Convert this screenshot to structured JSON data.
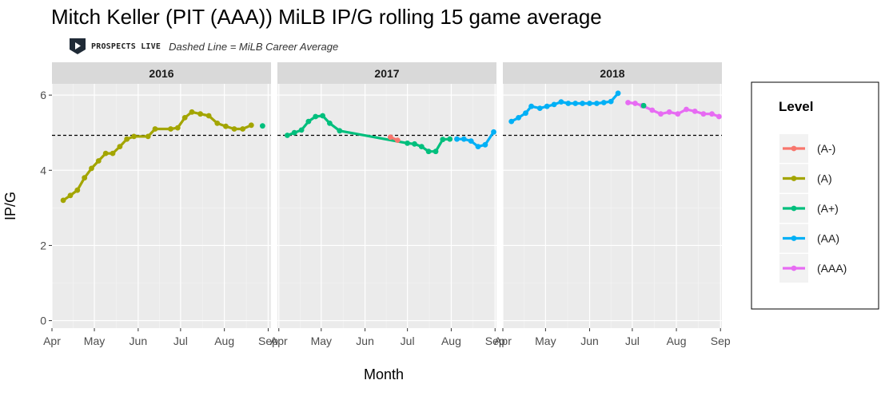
{
  "chart_data": {
    "type": "line",
    "title": "Mitch Keller (PIT (AAA)) MiLB IP/G rolling 15 game average",
    "subtitle": "Dashed Line = MiLB Career Average",
    "brand": "PROSPECTS LIVE",
    "xlabel": "Month",
    "ylabel": "IP/G",
    "ylim": [
      -0.2,
      6.3
    ],
    "yticks": [
      0,
      2,
      4,
      6
    ],
    "career_average": 4.93,
    "grid": true,
    "legend": {
      "title": "Level",
      "position": "right",
      "entries": [
        {
          "label": "(A-)",
          "color": "#F8766D"
        },
        {
          "label": "(A)",
          "color": "#A3A500"
        },
        {
          "label": "(A+)",
          "color": "#00BF7D"
        },
        {
          "label": "(AA)",
          "color": "#00B0F6"
        },
        {
          "label": "(AAA)",
          "color": "#E76BF3"
        }
      ]
    },
    "panels": [
      {
        "facet": "2016",
        "xlim": [
          "2016-04-01",
          "2016-09-03"
        ],
        "xticks": [
          {
            "label": "Apr",
            "date": "2016-04-01"
          },
          {
            "label": "May",
            "date": "2016-05-01"
          },
          {
            "label": "Jun",
            "date": "2016-06-01"
          },
          {
            "label": "Jul",
            "date": "2016-07-01"
          },
          {
            "label": "Aug",
            "date": "2016-08-01"
          },
          {
            "label": "Sep",
            "date": "2016-09-01"
          }
        ],
        "series": [
          {
            "level": "(A)",
            "points": [
              [
                "2016-04-09",
                3.2
              ],
              [
                "2016-04-14",
                3.33
              ],
              [
                "2016-04-19",
                3.47
              ],
              [
                "2016-04-24",
                3.8
              ],
              [
                "2016-04-29",
                4.05
              ],
              [
                "2016-05-04",
                4.25
              ],
              [
                "2016-05-09",
                4.45
              ],
              [
                "2016-05-14",
                4.45
              ],
              [
                "2016-05-19",
                4.63
              ],
              [
                "2016-05-24",
                4.83
              ],
              [
                "2016-05-29",
                4.9
              ],
              [
                "2016-06-08",
                4.9
              ],
              [
                "2016-06-13",
                5.1
              ],
              [
                "2016-06-24",
                5.1
              ],
              [
                "2016-06-29",
                5.13
              ],
              [
                "2016-07-04",
                5.4
              ],
              [
                "2016-07-09",
                5.55
              ],
              [
                "2016-07-15",
                5.5
              ],
              [
                "2016-07-21",
                5.45
              ],
              [
                "2016-07-27",
                5.25
              ],
              [
                "2016-08-02",
                5.17
              ],
              [
                "2016-08-08",
                5.1
              ],
              [
                "2016-08-14",
                5.1
              ],
              [
                "2016-08-20",
                5.2
              ]
            ]
          },
          {
            "level": "(A+)",
            "points": [
              [
                "2016-08-28",
                5.18
              ]
            ]
          }
        ]
      },
      {
        "facet": "2017",
        "xlim": [
          "2017-03-31",
          "2017-09-02"
        ],
        "xticks": [
          {
            "label": "Apr",
            "date": "2017-04-01"
          },
          {
            "label": "May",
            "date": "2017-05-01"
          },
          {
            "label": "Jun",
            "date": "2017-06-01"
          },
          {
            "label": "Jul",
            "date": "2017-07-01"
          },
          {
            "label": "Aug",
            "date": "2017-08-01"
          },
          {
            "label": "Sep",
            "date": "2017-09-01"
          }
        ],
        "series": [
          {
            "level": "(A+)",
            "points": [
              [
                "2017-04-07",
                4.93
              ],
              [
                "2017-04-12",
                5.0
              ],
              [
                "2017-04-17",
                5.07
              ],
              [
                "2017-04-22",
                5.3
              ],
              [
                "2017-04-27",
                5.43
              ],
              [
                "2017-05-02",
                5.45
              ],
              [
                "2017-05-07",
                5.25
              ],
              [
                "2017-05-14",
                5.05
              ],
              [
                "2017-07-01",
                4.72
              ],
              [
                "2017-07-06",
                4.7
              ],
              [
                "2017-07-11",
                4.63
              ],
              [
                "2017-07-16",
                4.5
              ],
              [
                "2017-07-21",
                4.5
              ],
              [
                "2017-07-26",
                4.82
              ],
              [
                "2017-07-31",
                4.83
              ]
            ]
          },
          {
            "level": "(A-)",
            "points": [
              [
                "2017-06-19",
                4.88
              ],
              [
                "2017-06-24",
                4.8
              ]
            ]
          },
          {
            "level": "(AA)",
            "points": [
              [
                "2017-08-05",
                4.83
              ],
              [
                "2017-08-10",
                4.83
              ],
              [
                "2017-08-15",
                4.78
              ],
              [
                "2017-08-20",
                4.63
              ],
              [
                "2017-08-25",
                4.68
              ],
              [
                "2017-08-31",
                5.02
              ]
            ]
          }
        ]
      },
      {
        "facet": "2018",
        "xlim": [
          "2018-04-01",
          "2018-09-02"
        ],
        "xticks": [
          {
            "label": "Apr",
            "date": "2018-04-01"
          },
          {
            "label": "May",
            "date": "2018-05-01"
          },
          {
            "label": "Jun",
            "date": "2018-06-01"
          },
          {
            "label": "Jul",
            "date": "2018-07-01"
          },
          {
            "label": "Aug",
            "date": "2018-08-01"
          },
          {
            "label": "Sep",
            "date": "2018-09-01"
          }
        ],
        "series": [
          {
            "level": "(AA)",
            "points": [
              [
                "2018-04-07",
                5.3
              ],
              [
                "2018-04-12",
                5.4
              ],
              [
                "2018-04-17",
                5.52
              ],
              [
                "2018-04-21",
                5.7
              ],
              [
                "2018-04-27",
                5.65
              ],
              [
                "2018-05-02",
                5.7
              ],
              [
                "2018-05-07",
                5.75
              ],
              [
                "2018-05-12",
                5.82
              ],
              [
                "2018-05-17",
                5.78
              ],
              [
                "2018-05-22",
                5.78
              ],
              [
                "2018-05-27",
                5.78
              ],
              [
                "2018-06-01",
                5.78
              ],
              [
                "2018-06-06",
                5.78
              ],
              [
                "2018-06-11",
                5.8
              ],
              [
                "2018-06-16",
                5.83
              ],
              [
                "2018-06-21",
                6.05
              ]
            ]
          },
          {
            "level": "(AAA)",
            "points": [
              [
                "2018-06-28",
                5.8
              ],
              [
                "2018-07-03",
                5.78
              ],
              [
                "2018-07-08",
                5.72
              ],
              [
                "2018-07-15",
                5.6
              ],
              [
                "2018-07-21",
                5.5
              ],
              [
                "2018-07-27",
                5.55
              ],
              [
                "2018-08-02",
                5.5
              ],
              [
                "2018-08-08",
                5.62
              ],
              [
                "2018-08-14",
                5.57
              ],
              [
                "2018-08-20",
                5.5
              ],
              [
                "2018-08-26",
                5.5
              ],
              [
                "2018-08-31",
                5.43
              ]
            ]
          },
          {
            "level": "(A+)",
            "points": [
              [
                "2018-07-09",
                5.72
              ]
            ]
          }
        ]
      }
    ]
  }
}
